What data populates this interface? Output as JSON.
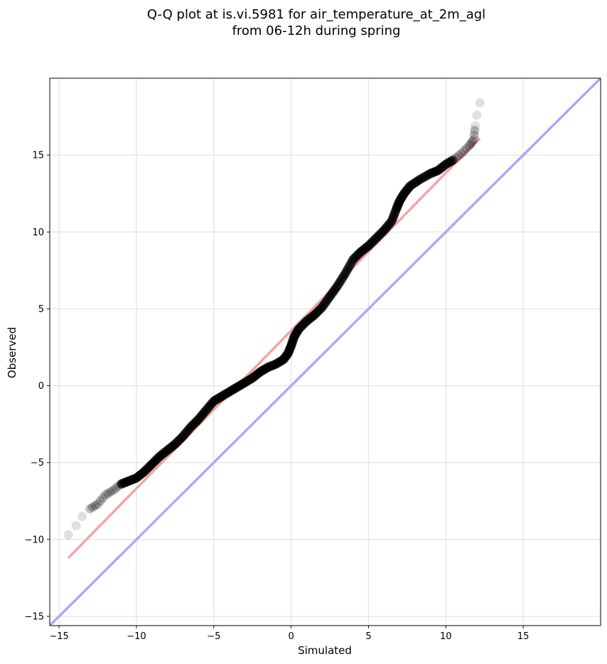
{
  "chart_data": {
    "type": "scatter",
    "title_lines": [
      "Q-Q plot at is.vi.5981 for air_temperature_at_2m_agl",
      "from 06-12h during spring"
    ],
    "xlabel": "Simulated",
    "ylabel": "Observed",
    "xlim": [
      -15.6,
      20.0
    ],
    "ylim": [
      -15.6,
      20.0
    ],
    "xticks": [
      -15,
      -10,
      -5,
      0,
      5,
      10,
      15
    ],
    "yticks": [
      -15,
      -10,
      -5,
      0,
      5,
      10,
      15
    ],
    "tick_labels_x": [
      "−15",
      "−10",
      "−5",
      "0",
      "5",
      "10",
      "15"
    ],
    "tick_labels_y": [
      "−15",
      "−10",
      "−5",
      "0",
      "5",
      "10",
      "15"
    ],
    "grid": true,
    "quantile_points": [
      [
        -14.4,
        -9.7
      ],
      [
        -13.9,
        -9.1
      ],
      [
        -13.5,
        -8.5
      ],
      [
        -13.0,
        -8.0
      ],
      [
        -12.5,
        -7.7
      ],
      [
        -12.0,
        -7.1
      ],
      [
        -11.5,
        -6.8
      ],
      [
        -11.0,
        -6.4
      ],
      [
        -10.5,
        -6.2
      ],
      [
        -10.0,
        -6.0
      ],
      [
        -9.5,
        -5.6
      ],
      [
        -9.0,
        -5.1
      ],
      [
        -8.5,
        -4.6
      ],
      [
        -8.0,
        -4.2
      ],
      [
        -7.5,
        -3.8
      ],
      [
        -7.0,
        -3.3
      ],
      [
        -6.5,
        -2.7
      ],
      [
        -6.0,
        -2.2
      ],
      [
        -5.5,
        -1.6
      ],
      [
        -5.0,
        -1.0
      ],
      [
        -4.5,
        -0.7
      ],
      [
        -4.0,
        -0.4
      ],
      [
        -3.5,
        -0.1
      ],
      [
        -3.0,
        0.2
      ],
      [
        -2.5,
        0.5
      ],
      [
        -2.0,
        0.9
      ],
      [
        -1.5,
        1.2
      ],
      [
        -1.0,
        1.4
      ],
      [
        -0.5,
        1.7
      ],
      [
        -0.2,
        2.1
      ],
      [
        0.0,
        2.6
      ],
      [
        0.2,
        3.2
      ],
      [
        0.5,
        3.7
      ],
      [
        1.0,
        4.2
      ],
      [
        1.5,
        4.6
      ],
      [
        2.0,
        5.1
      ],
      [
        2.5,
        5.8
      ],
      [
        3.0,
        6.5
      ],
      [
        3.5,
        7.3
      ],
      [
        4.0,
        8.2
      ],
      [
        4.5,
        8.7
      ],
      [
        5.0,
        9.1
      ],
      [
        5.5,
        9.6
      ],
      [
        6.0,
        10.1
      ],
      [
        6.5,
        10.7
      ],
      [
        6.8,
        11.5
      ],
      [
        7.0,
        12.0
      ],
      [
        7.3,
        12.5
      ],
      [
        7.7,
        13.0
      ],
      [
        8.3,
        13.4
      ],
      [
        9.0,
        13.8
      ],
      [
        9.5,
        14.0
      ],
      [
        10.0,
        14.4
      ],
      [
        10.5,
        14.7
      ],
      [
        11.0,
        15.1
      ],
      [
        11.5,
        15.6
      ],
      [
        11.8,
        16.0
      ],
      [
        11.9,
        16.9
      ],
      [
        12.0,
        17.6
      ],
      [
        12.2,
        18.4
      ]
    ],
    "fit_line": {
      "x": [
        -14.4,
        12.2
      ],
      "y": [
        -11.2,
        16.1
      ],
      "color": "#f4a4a4"
    },
    "identity_line": {
      "color": "#aaaaf8"
    },
    "point_color": "#000000"
  }
}
